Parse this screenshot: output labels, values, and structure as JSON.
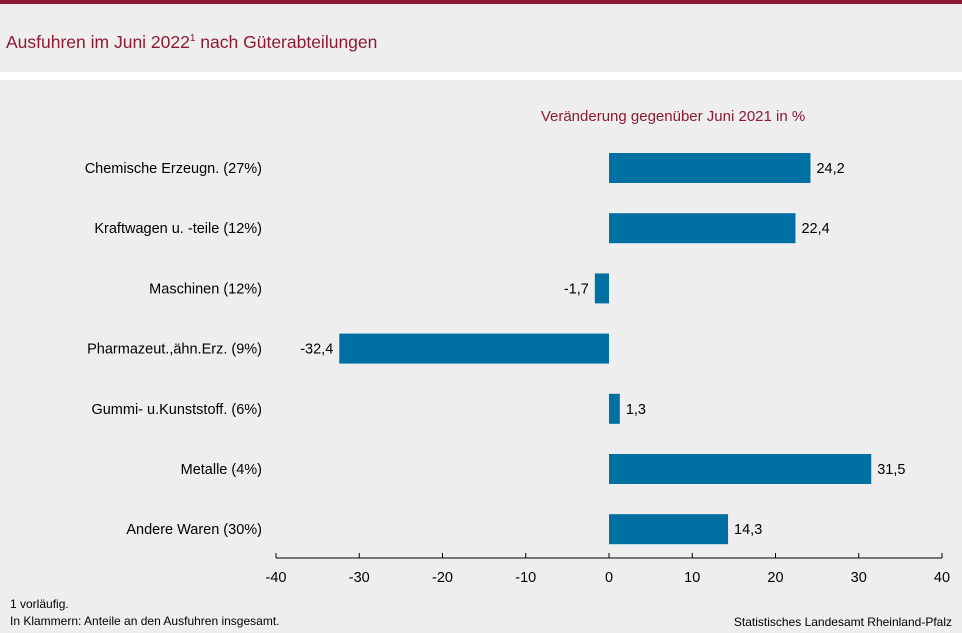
{
  "header": {
    "title": "Ausfuhren im Juni 2022",
    "title_sup": "1",
    "title_rest": " nach Güterabteilungen"
  },
  "chart_data": {
    "type": "bar",
    "orientation": "horizontal",
    "title": "Veränderung  gegenüber  Juni  2021 in %",
    "categories": [
      "Chemische Erzeugn. (27%)",
      "Kraftwagen u. -teile (12%)",
      "Maschinen (12%)",
      "Pharmazeut.,ähn.Erz. (9%)",
      "Gummi- u.Kunststoff. (6%)",
      "Metalle (4%)",
      "Andere Waren (30%)"
    ],
    "values": [
      24.2,
      22.4,
      -1.7,
      -32.4,
      1.3,
      31.5,
      14.3
    ],
    "value_labels": [
      "24,2",
      "22,4",
      "-1,7",
      "-32,4",
      "1,3",
      "31,5",
      "14,3"
    ],
    "xlim": [
      -40,
      40
    ],
    "xticks": [
      -40,
      -30,
      -20,
      -10,
      0,
      10,
      20,
      30,
      40
    ],
    "grid": false,
    "bar_color": "#0070a3"
  },
  "footer": {
    "note1": "1 vorläufig.",
    "note2": "In Klammern:  Anteile an den Ausfuhren  insgesamt.",
    "source": "Statistisches Landesamt Rheinland-Pfalz"
  }
}
